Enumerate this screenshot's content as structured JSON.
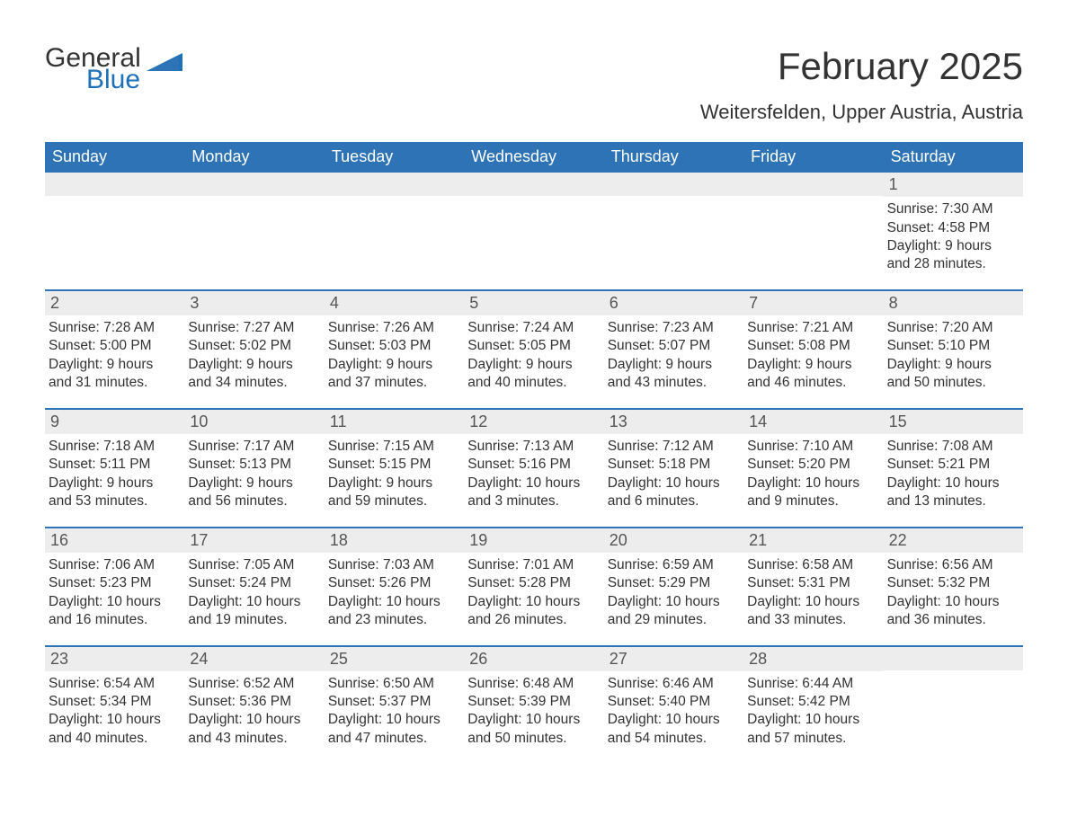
{
  "brand": {
    "word1": "General",
    "word2": "Blue"
  },
  "colors": {
    "header_bg": "#2d73b6",
    "header_text": "#ffffff",
    "row_rule": "#2d73b6",
    "daynum_bg": "#ededed",
    "body_text": "#333333",
    "brand_blue": "#1e70b8"
  },
  "title": "February 2025",
  "location": "Weitersfelden, Upper Austria, Austria",
  "days_of_week": [
    "Sunday",
    "Monday",
    "Tuesday",
    "Wednesday",
    "Thursday",
    "Friday",
    "Saturday"
  ],
  "weeks": [
    [
      {
        "n": "",
        "sunrise": "",
        "sunset": "",
        "daylight": ""
      },
      {
        "n": "",
        "sunrise": "",
        "sunset": "",
        "daylight": ""
      },
      {
        "n": "",
        "sunrise": "",
        "sunset": "",
        "daylight": ""
      },
      {
        "n": "",
        "sunrise": "",
        "sunset": "",
        "daylight": ""
      },
      {
        "n": "",
        "sunrise": "",
        "sunset": "",
        "daylight": ""
      },
      {
        "n": "",
        "sunrise": "",
        "sunset": "",
        "daylight": ""
      },
      {
        "n": "1",
        "sunrise": "Sunrise: 7:30 AM",
        "sunset": "Sunset: 4:58 PM",
        "daylight": "Daylight: 9 hours and 28 minutes."
      }
    ],
    [
      {
        "n": "2",
        "sunrise": "Sunrise: 7:28 AM",
        "sunset": "Sunset: 5:00 PM",
        "daylight": "Daylight: 9 hours and 31 minutes."
      },
      {
        "n": "3",
        "sunrise": "Sunrise: 7:27 AM",
        "sunset": "Sunset: 5:02 PM",
        "daylight": "Daylight: 9 hours and 34 minutes."
      },
      {
        "n": "4",
        "sunrise": "Sunrise: 7:26 AM",
        "sunset": "Sunset: 5:03 PM",
        "daylight": "Daylight: 9 hours and 37 minutes."
      },
      {
        "n": "5",
        "sunrise": "Sunrise: 7:24 AM",
        "sunset": "Sunset: 5:05 PM",
        "daylight": "Daylight: 9 hours and 40 minutes."
      },
      {
        "n": "6",
        "sunrise": "Sunrise: 7:23 AM",
        "sunset": "Sunset: 5:07 PM",
        "daylight": "Daylight: 9 hours and 43 minutes."
      },
      {
        "n": "7",
        "sunrise": "Sunrise: 7:21 AM",
        "sunset": "Sunset: 5:08 PM",
        "daylight": "Daylight: 9 hours and 46 minutes."
      },
      {
        "n": "8",
        "sunrise": "Sunrise: 7:20 AM",
        "sunset": "Sunset: 5:10 PM",
        "daylight": "Daylight: 9 hours and 50 minutes."
      }
    ],
    [
      {
        "n": "9",
        "sunrise": "Sunrise: 7:18 AM",
        "sunset": "Sunset: 5:11 PM",
        "daylight": "Daylight: 9 hours and 53 minutes."
      },
      {
        "n": "10",
        "sunrise": "Sunrise: 7:17 AM",
        "sunset": "Sunset: 5:13 PM",
        "daylight": "Daylight: 9 hours and 56 minutes."
      },
      {
        "n": "11",
        "sunrise": "Sunrise: 7:15 AM",
        "sunset": "Sunset: 5:15 PM",
        "daylight": "Daylight: 9 hours and 59 minutes."
      },
      {
        "n": "12",
        "sunrise": "Sunrise: 7:13 AM",
        "sunset": "Sunset: 5:16 PM",
        "daylight": "Daylight: 10 hours and 3 minutes."
      },
      {
        "n": "13",
        "sunrise": "Sunrise: 7:12 AM",
        "sunset": "Sunset: 5:18 PM",
        "daylight": "Daylight: 10 hours and 6 minutes."
      },
      {
        "n": "14",
        "sunrise": "Sunrise: 7:10 AM",
        "sunset": "Sunset: 5:20 PM",
        "daylight": "Daylight: 10 hours and 9 minutes."
      },
      {
        "n": "15",
        "sunrise": "Sunrise: 7:08 AM",
        "sunset": "Sunset: 5:21 PM",
        "daylight": "Daylight: 10 hours and 13 minutes."
      }
    ],
    [
      {
        "n": "16",
        "sunrise": "Sunrise: 7:06 AM",
        "sunset": "Sunset: 5:23 PM",
        "daylight": "Daylight: 10 hours and 16 minutes."
      },
      {
        "n": "17",
        "sunrise": "Sunrise: 7:05 AM",
        "sunset": "Sunset: 5:24 PM",
        "daylight": "Daylight: 10 hours and 19 minutes."
      },
      {
        "n": "18",
        "sunrise": "Sunrise: 7:03 AM",
        "sunset": "Sunset: 5:26 PM",
        "daylight": "Daylight: 10 hours and 23 minutes."
      },
      {
        "n": "19",
        "sunrise": "Sunrise: 7:01 AM",
        "sunset": "Sunset: 5:28 PM",
        "daylight": "Daylight: 10 hours and 26 minutes."
      },
      {
        "n": "20",
        "sunrise": "Sunrise: 6:59 AM",
        "sunset": "Sunset: 5:29 PM",
        "daylight": "Daylight: 10 hours and 29 minutes."
      },
      {
        "n": "21",
        "sunrise": "Sunrise: 6:58 AM",
        "sunset": "Sunset: 5:31 PM",
        "daylight": "Daylight: 10 hours and 33 minutes."
      },
      {
        "n": "22",
        "sunrise": "Sunrise: 6:56 AM",
        "sunset": "Sunset: 5:32 PM",
        "daylight": "Daylight: 10 hours and 36 minutes."
      }
    ],
    [
      {
        "n": "23",
        "sunrise": "Sunrise: 6:54 AM",
        "sunset": "Sunset: 5:34 PM",
        "daylight": "Daylight: 10 hours and 40 minutes."
      },
      {
        "n": "24",
        "sunrise": "Sunrise: 6:52 AM",
        "sunset": "Sunset: 5:36 PM",
        "daylight": "Daylight: 10 hours and 43 minutes."
      },
      {
        "n": "25",
        "sunrise": "Sunrise: 6:50 AM",
        "sunset": "Sunset: 5:37 PM",
        "daylight": "Daylight: 10 hours and 47 minutes."
      },
      {
        "n": "26",
        "sunrise": "Sunrise: 6:48 AM",
        "sunset": "Sunset: 5:39 PM",
        "daylight": "Daylight: 10 hours and 50 minutes."
      },
      {
        "n": "27",
        "sunrise": "Sunrise: 6:46 AM",
        "sunset": "Sunset: 5:40 PM",
        "daylight": "Daylight: 10 hours and 54 minutes."
      },
      {
        "n": "28",
        "sunrise": "Sunrise: 6:44 AM",
        "sunset": "Sunset: 5:42 PM",
        "daylight": "Daylight: 10 hours and 57 minutes."
      },
      {
        "n": "",
        "sunrise": "",
        "sunset": "",
        "daylight": ""
      }
    ]
  ]
}
